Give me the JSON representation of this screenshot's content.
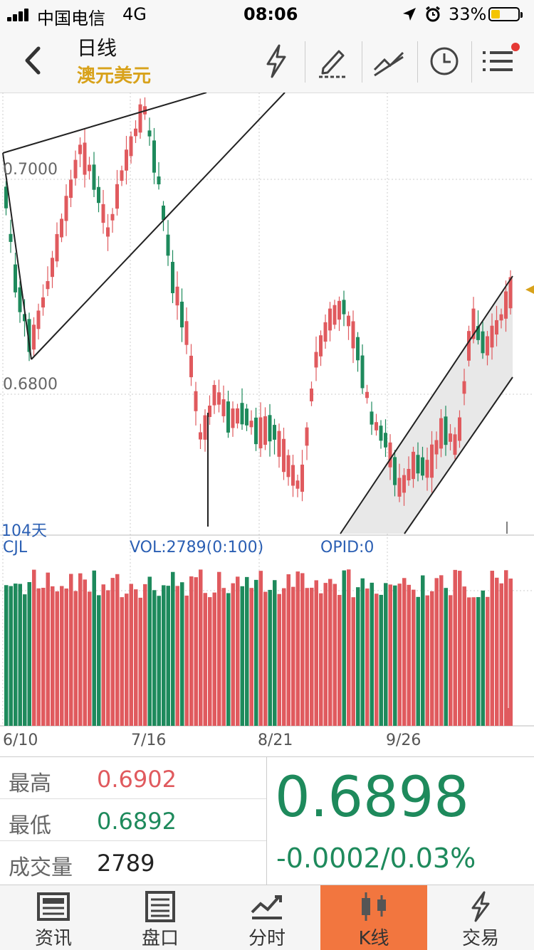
{
  "status_bar": {
    "carrier": "中国电信",
    "network": "4G",
    "time": "08:06",
    "battery": "33%",
    "battery_level": 0.33
  },
  "nav": {
    "period": "日线",
    "symbol": "澳元美元",
    "icons": [
      "back-icon",
      "flash-icon",
      "draw-icon",
      "trendline-icon",
      "clock-icon",
      "menu-icon"
    ]
  },
  "chart": {
    "price_labels": [
      "0.7000",
      "0.6800"
    ],
    "days_label": "104天",
    "indicator_labels": [
      "CJL",
      "VOL:2789(0:100)",
      "OPID:0"
    ],
    "date_labels": [
      "6/10",
      "7/16",
      "8/21",
      "9/26"
    ],
    "colors": {
      "up": "#e05a5e",
      "down": "#1e8a5c"
    }
  },
  "quote": {
    "high_label": "最高",
    "high": "0.6902",
    "low_label": "最低",
    "low": "0.6892",
    "volume_label": "成交量",
    "volume": "2789",
    "last": "0.6898",
    "change": "-0.0002/0.03%"
  },
  "tabs": [
    {
      "label": "资讯",
      "icon": "news-icon"
    },
    {
      "label": "盘口",
      "icon": "orderbook-icon"
    },
    {
      "label": "分时",
      "icon": "timeshare-icon"
    },
    {
      "label": "K线",
      "icon": "kline-icon",
      "active": true
    },
    {
      "label": "交易",
      "icon": "trade-icon"
    }
  ]
}
